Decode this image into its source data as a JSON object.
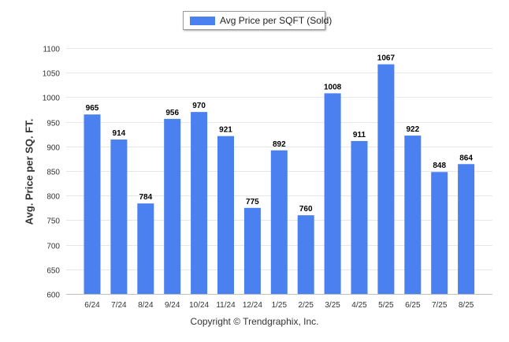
{
  "legend": {
    "label": "Avg Price per SQFT (Sold)",
    "color": "#4a80f0"
  },
  "footer": "Copyright © Trendgraphix, Inc.",
  "chart_data": {
    "type": "bar",
    "categories": [
      "6/24",
      "7/24",
      "8/24",
      "9/24",
      "10/24",
      "11/24",
      "12/24",
      "1/25",
      "2/25",
      "3/25",
      "4/25",
      "5/25",
      "6/25",
      "7/25",
      "8/25"
    ],
    "series": [
      {
        "name": "Avg Price per SQFT (Sold)",
        "values": [
          965,
          914,
          784,
          956,
          970,
          921,
          775,
          892,
          760,
          1008,
          911,
          1067,
          922,
          848,
          864
        ]
      }
    ],
    "ylabel": "Avg. Price per SQ. FT.",
    "xlabel": "",
    "ylim": [
      600,
      1100
    ],
    "yticks": [
      600,
      650,
      700,
      750,
      800,
      850,
      900,
      950,
      1000,
      1050,
      1100
    ],
    "grid": true,
    "legend_position": "top-center",
    "bar_color": "#4a80f0"
  }
}
